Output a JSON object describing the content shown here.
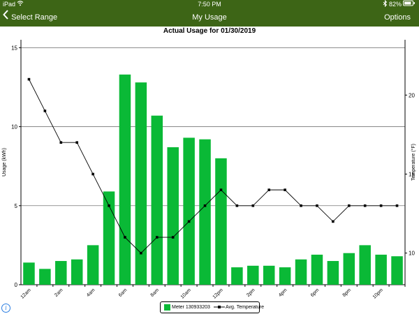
{
  "status_bar": {
    "device": "iPad",
    "time": "7:50 PM",
    "battery": "82%",
    "icons": [
      "wifi-icon",
      "bluetooth-icon",
      "battery-icon"
    ]
  },
  "nav": {
    "back_label": "Select Range",
    "title": "My Usage",
    "options_label": "Options",
    "bar_color": "#3d6516"
  },
  "chart_data": {
    "type": "bar",
    "title": "Actual Usage for 01/30/2019",
    "ylabel": "Usage (kWh)",
    "y2label": "Temperature (°F)",
    "ylim": [
      0,
      15.5
    ],
    "y2lim": [
      8,
      23.5
    ],
    "yticks": [
      0,
      5,
      10,
      15
    ],
    "y2ticks": [
      10,
      15,
      20
    ],
    "grid": true,
    "categories": [
      "12am",
      "1am",
      "2am",
      "3am",
      "4am",
      "5am",
      "6am",
      "7am",
      "8am",
      "9am",
      "10am",
      "11am",
      "12pm",
      "1pm",
      "2pm",
      "3pm",
      "4pm",
      "5pm",
      "6pm",
      "7pm",
      "8pm",
      "9pm",
      "10pm",
      "11pm"
    ],
    "xtick_labels": [
      "12am",
      "",
      "2am",
      "",
      "4am",
      "",
      "6am",
      "",
      "8am",
      "",
      "10am",
      "",
      "12pm",
      "",
      "2pm",
      "",
      "4pm",
      "",
      "6pm",
      "",
      "8pm",
      "",
      "10pm",
      ""
    ],
    "series": [
      {
        "name": "Meter 130933203",
        "kind": "bar",
        "color": "#0ab936",
        "values": [
          1.4,
          1.0,
          1.5,
          1.6,
          2.5,
          5.9,
          13.3,
          12.8,
          10.7,
          8.7,
          9.3,
          9.2,
          8.0,
          1.1,
          1.2,
          1.2,
          1.1,
          1.6,
          1.9,
          1.5,
          2.0,
          2.5,
          1.9,
          1.8
        ]
      },
      {
        "name": "Avg. Temperature",
        "kind": "line",
        "axis": "right",
        "color": "#000000",
        "values": [
          21,
          19,
          17,
          17,
          15,
          13,
          11,
          10,
          11,
          11,
          12,
          13,
          14,
          13,
          13,
          14,
          14,
          13,
          13,
          12,
          13,
          13,
          13,
          13
        ]
      }
    ]
  }
}
